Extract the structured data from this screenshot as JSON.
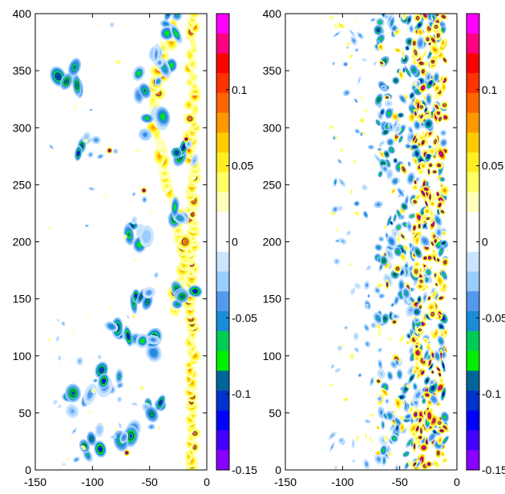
{
  "chart_data": [
    {
      "type": "heatmap",
      "panel": "left",
      "title": "",
      "xlabel": "",
      "ylabel": "",
      "xlim": [
        -150,
        0
      ],
      "ylim": [
        0,
        400
      ],
      "x_ticks": [
        "-150",
        "-100",
        "-50",
        "0"
      ],
      "y_ticks": [
        "0",
        "50",
        "100",
        "150",
        "200",
        "250",
        "300",
        "350",
        "400"
      ],
      "colorbar": {
        "range": [
          -0.15,
          0.15
        ],
        "tick_values": [
          0.1,
          0.05,
          0,
          -0.05,
          -0.1,
          -0.15
        ],
        "tick_labels": [
          "0.1",
          "0.05",
          "0",
          "-0.05",
          "-0.1",
          "-0.15"
        ],
        "levels_from_top": [
          "#ff00ff",
          "#ff0080",
          "#ff0000",
          "#ff3300",
          "#ff6600",
          "#ff9900",
          "#ffcc00",
          "#ffee22",
          "#ffff66",
          "#ffffbb",
          "#ffffff",
          "#ffffff",
          "#cce5ff",
          "#99ccff",
          "#5599ee",
          "#1a8cd8",
          "#00cc55",
          "#00ee00",
          "#006699",
          "#0033cc",
          "#0000ff",
          "#4400ff",
          "#8800ff"
        ]
      },
      "features": [
        {
          "x": -10,
          "y_from": 0,
          "y_to": 400,
          "value": 0.06
        },
        {
          "x": -30,
          "y_from": 150,
          "y_to": 330,
          "value": 0.08
        },
        {
          "x": -38,
          "y_from": 260,
          "y_to": 390,
          "value": 0.05
        },
        {
          "x": -60,
          "y_from": 130,
          "y_to": 170,
          "value": -0.08
        },
        {
          "x": -110,
          "y_from": 20,
          "y_to": 60,
          "value": -0.1
        },
        {
          "x": -120,
          "y_from": 330,
          "y_to": 360,
          "value": -0.1
        }
      ]
    },
    {
      "type": "heatmap",
      "panel": "right",
      "title": "",
      "xlabel": "",
      "ylabel": "",
      "xlim": [
        -150,
        0
      ],
      "ylim": [
        0,
        400
      ],
      "x_ticks": [
        "-150",
        "-100",
        "-50",
        "0"
      ],
      "y_ticks": [
        "0",
        "50",
        "100",
        "150",
        "200",
        "250",
        "300",
        "350",
        "400"
      ],
      "colorbar": {
        "range": [
          -0.15,
          0.15
        ],
        "tick_values": [
          0.1,
          0.05,
          0,
          -0.05,
          -0.1,
          -0.15
        ],
        "tick_labels": [
          "0.1",
          "0.05",
          "0",
          "-0.05",
          "-0.1",
          "-0.15"
        ],
        "levels_from_top": [
          "#ff00ff",
          "#ff0080",
          "#ff0000",
          "#ff3300",
          "#ff6600",
          "#ff9900",
          "#ffcc00",
          "#ffee22",
          "#ffff66",
          "#ffffbb",
          "#ffffff",
          "#ffffff",
          "#cce5ff",
          "#99ccff",
          "#5599ee",
          "#1a8cd8",
          "#00cc55",
          "#00ee00",
          "#006699",
          "#0033cc",
          "#0000ff",
          "#4400ff",
          "#8800ff"
        ]
      },
      "features": [
        {
          "x_from": -35,
          "x_to": -10,
          "y_from": 0,
          "y_to": 400,
          "value": 0.12
        },
        {
          "x_from": -70,
          "x_to": -35,
          "y_from": 0,
          "y_to": 400,
          "value": -0.08
        },
        {
          "x_from": -110,
          "x_to": -70,
          "y_from": 0,
          "y_to": 400,
          "value": -0.03
        }
      ]
    }
  ]
}
